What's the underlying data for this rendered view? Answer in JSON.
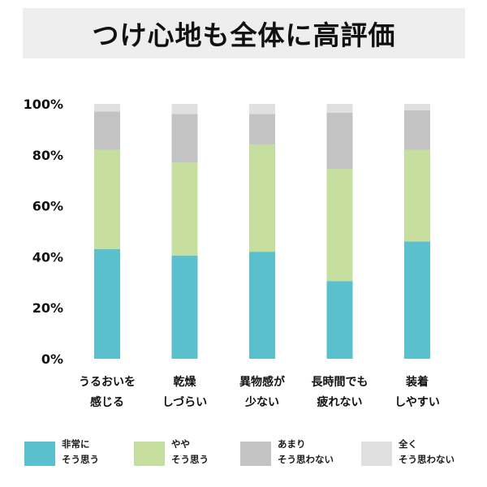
{
  "title": "つけ心地も全体に高評価",
  "chart_data": {
    "type": "bar",
    "stacked": true,
    "orientation": "vertical",
    "ylim": [
      0,
      100
    ],
    "yticks": [
      "0%",
      "20%",
      "40%",
      "60%",
      "80%",
      "100%"
    ],
    "ytick_values": [
      0,
      20,
      40,
      60,
      80,
      100
    ],
    "grid": false,
    "legend_position": "bottom",
    "categories": [
      [
        "うるおいを",
        "感じる"
      ],
      [
        "乾燥",
        "しづらい"
      ],
      [
        "異物感が",
        "少ない"
      ],
      [
        "長時間でも",
        "疲れない"
      ],
      [
        "装着",
        "しやすい"
      ]
    ],
    "series": [
      {
        "name": [
          "非常に",
          "そう思う"
        ],
        "color": "#5bc0cd",
        "values": [
          43,
          40.5,
          42,
          30.5,
          46
        ]
      },
      {
        "name": [
          "やや",
          "そう思う"
        ],
        "color": "#c6df9f",
        "values": [
          39,
          36.5,
          42,
          44,
          36
        ]
      },
      {
        "name": [
          "あまり",
          "そう思わない"
        ],
        "color": "#c3c3c3",
        "values": [
          15,
          19,
          12,
          22,
          15.5
        ]
      },
      {
        "name": [
          "全く",
          "そう思わない"
        ],
        "color": "#e0e0e0",
        "values": [
          3,
          4,
          4,
          3.5,
          2.5
        ]
      }
    ]
  }
}
